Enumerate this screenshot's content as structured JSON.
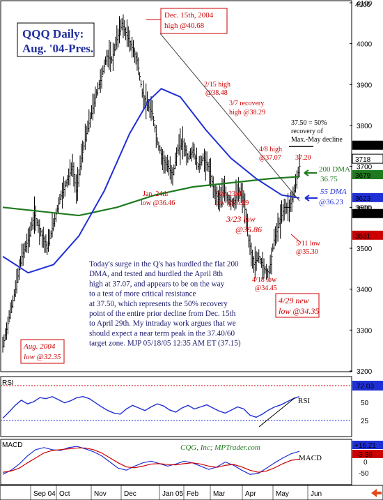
{
  "chart_data": [
    {
      "type": "ohlc",
      "title": "QQQ Daily:",
      "subtitle": "Aug. '04-Pres.",
      "ylim": [
        3200,
        4100
      ],
      "y_ticks": [
        3200,
        3300,
        3400,
        3500,
        3600,
        3700,
        3800,
        3900,
        4000,
        4100
      ],
      "x_ticks": [
        "Sep 04",
        "Oct",
        "Nov",
        "Dec",
        "Jan 05",
        "Feb",
        "Mar",
        "Apr",
        "May",
        "Jun"
      ],
      "price_path": [
        [
          0,
          3260
        ],
        [
          5,
          3330
        ],
        [
          10,
          3400
        ],
        [
          15,
          3480
        ],
        [
          20,
          3520
        ],
        [
          25,
          3580
        ],
        [
          30,
          3540
        ],
        [
          35,
          3500
        ],
        [
          40,
          3560
        ],
        [
          45,
          3620
        ],
        [
          50,
          3660
        ],
        [
          55,
          3700
        ],
        [
          58,
          3640
        ],
        [
          62,
          3720
        ],
        [
          66,
          3780
        ],
        [
          70,
          3830
        ],
        [
          74,
          3880
        ],
        [
          78,
          3920
        ],
        [
          82,
          3970
        ],
        [
          86,
          3960
        ],
        [
          90,
          4010
        ],
        [
          94,
          4050
        ],
        [
          98,
          4020
        ],
        [
          102,
          3990
        ],
        [
          106,
          3960
        ],
        [
          110,
          3880
        ],
        [
          114,
          3850
        ],
        [
          118,
          3830
        ],
        [
          122,
          3760
        ],
        [
          126,
          3720
        ],
        [
          130,
          3700
        ],
        [
          134,
          3680
        ],
        [
          138,
          3740
        ],
        [
          142,
          3760
        ],
        [
          146,
          3720
        ],
        [
          150,
          3740
        ],
        [
          154,
          3700
        ],
        [
          158,
          3720
        ],
        [
          162,
          3700
        ],
        [
          166,
          3650
        ],
        [
          170,
          3620
        ],
        [
          174,
          3640
        ],
        [
          178,
          3620
        ],
        [
          182,
          3610
        ],
        [
          186,
          3640
        ],
        [
          190,
          3620
        ],
        [
          194,
          3520
        ],
        [
          198,
          3460
        ],
        [
          202,
          3480
        ],
        [
          206,
          3450
        ],
        [
          210,
          3440
        ],
        [
          214,
          3520
        ],
        [
          218,
          3560
        ],
        [
          222,
          3600
        ],
        [
          226,
          3600
        ],
        [
          230,
          3640
        ],
        [
          234,
          3700
        ]
      ],
      "ma200": {
        "name": "200 DMA",
        "label": "36.75",
        "path": [
          [
            0,
            3600
          ],
          [
            30,
            3590
          ],
          [
            60,
            3580
          ],
          [
            90,
            3600
          ],
          [
            120,
            3630
          ],
          [
            150,
            3650
          ],
          [
            180,
            3660
          ],
          [
            210,
            3670
          ],
          [
            234,
            3675
          ]
        ]
      },
      "ma55": {
        "name": "55 DMA",
        "label": "@36.23",
        "path": [
          [
            0,
            3480
          ],
          [
            20,
            3440
          ],
          [
            40,
            3460
          ],
          [
            60,
            3530
          ],
          [
            80,
            3640
          ],
          [
            100,
            3780
          ],
          [
            115,
            3860
          ],
          [
            125,
            3890
          ],
          [
            140,
            3870
          ],
          [
            160,
            3790
          ],
          [
            180,
            3720
          ],
          [
            200,
            3670
          ],
          [
            220,
            3630
          ],
          [
            234,
            3623
          ]
        ]
      },
      "price_labels": [
        "4100",
        "3751",
        "3718",
        "3679",
        "3623",
        "3600",
        "3584",
        "3531"
      ],
      "annotations": [
        {
          "text": "Dec. 15th, 2004",
          "text2": "high @40.68",
          "color": "#cc0000",
          "boxed": true
        },
        {
          "text": "2/15 high",
          "text2": "@38.48",
          "color": "#cc0000"
        },
        {
          "text": "3/7 recovery",
          "text2": "high @38.29",
          "color": "#cc0000"
        },
        {
          "text": "37.50 = 50%",
          "text2": "recovery of",
          "text3": "Max.-May decline",
          "color": "#000000"
        },
        {
          "text": "4/8 high",
          "text2": "@37.07",
          "color": "#cc0000"
        },
        {
          "text": "37.20",
          "color": "#cc0000"
        },
        {
          "text": "Feb. 23rd",
          "text2": "low @36.69",
          "color": "#cc0000"
        },
        {
          "text": "Jan. 24th",
          "text2": "low @36.46",
          "color": "#cc0000"
        },
        {
          "text": "3/23 low",
          "text2": "@35.86",
          "color": "#cc0000",
          "italic": true
        },
        {
          "text": "5/11 low",
          "text2": "@35.30",
          "color": "#cc0000"
        },
        {
          "text": "4/18 low",
          "text2": "@34.45",
          "color": "#cc0000"
        },
        {
          "text": "4/29 new",
          "text2": "low @34.35",
          "color": "#cc0000",
          "boxed": true,
          "italic": true
        },
        {
          "text": "Aug. 2004",
          "text2": "low @32.35",
          "color": "#cc0000",
          "boxed": true,
          "italic": true
        }
      ],
      "commentary": [
        "Today's surge in the Q's has hurdled the flat 200",
        "DMA, and tested and hurdled the April 8th",
        "high at 37.07, and appears to be on the way",
        "to a test of more critical resistance",
        "at 37.50, which represents the 50% recovery",
        "point of the entire prior decline from Dec. 15th",
        "to April 29th.  My intraday work argues that we",
        "should expect a near term peak in the 37.40/60",
        "target zone.  MJP 05/18/05 12:35 AM ET  (37.15)"
      ]
    },
    {
      "type": "line",
      "panel": "RSI",
      "title": "RSI",
      "series_label": "RSI",
      "ylim": [
        0,
        100
      ],
      "y_ticks": [
        25,
        50
      ],
      "last_value": "72.03",
      "values": [
        30,
        42,
        55,
        65,
        58,
        62,
        70,
        68,
        72,
        66,
        60,
        64,
        70,
        72,
        68,
        60,
        52,
        45,
        40,
        38,
        48,
        55,
        50,
        45,
        52,
        58,
        54,
        46,
        42,
        50,
        55,
        48,
        52,
        56,
        50,
        44,
        40,
        46,
        52,
        48,
        36,
        32,
        38,
        46,
        52,
        56,
        62,
        68,
        72
      ]
    },
    {
      "type": "line",
      "panel": "MACD",
      "title": "MACD",
      "series_label": "MACD",
      "y_ticks": [
        0,
        -50
      ],
      "values_label": [
        "+16.21",
        "-3.38"
      ],
      "watermark": "CQG, Inc; MPTrader.com",
      "macd": [
        -40,
        -30,
        -15,
        5,
        20,
        25,
        20,
        18,
        25,
        28,
        22,
        15,
        5,
        -10,
        -25,
        -30,
        -20,
        -12,
        -8,
        -14,
        -20,
        -15,
        -8,
        -12,
        -20,
        -28,
        -22,
        -10,
        -18,
        -30,
        -40,
        -38,
        -25,
        -12,
        0,
        10,
        16
      ],
      "signal": [
        -35,
        -32,
        -25,
        -12,
        0,
        12,
        18,
        20,
        22,
        24,
        24,
        20,
        12,
        0,
        -12,
        -22,
        -24,
        -20,
        -15,
        -14,
        -16,
        -17,
        -14,
        -12,
        -15,
        -20,
        -23,
        -18,
        -16,
        -22,
        -30,
        -35,
        -32,
        -24,
        -14,
        -6,
        -3
      ]
    }
  ],
  "colors": {
    "price": "#000000",
    "ma55": "#1f2fd6",
    "ma200": "#1f7a1f",
    "annotation_red": "#cc0000",
    "rsi_line": "#1f2fd6",
    "rsi_top": "#cc0000",
    "macd": "#1f2fd6",
    "signal": "#cc0000"
  }
}
